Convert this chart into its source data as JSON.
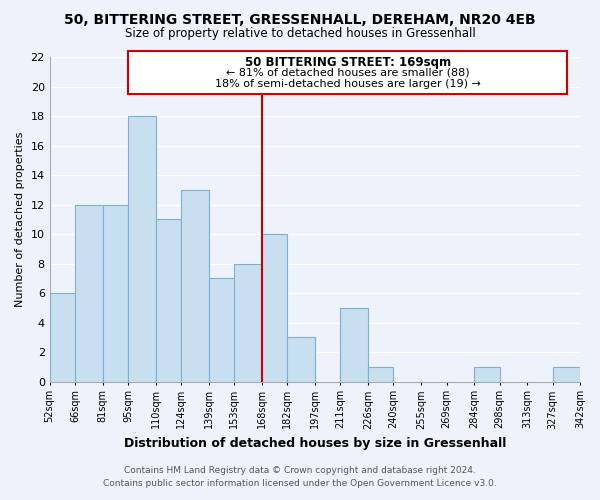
{
  "title": "50, BITTERING STREET, GRESSENHALL, DEREHAM, NR20 4EB",
  "subtitle": "Size of property relative to detached houses in Gressenhall",
  "xlabel": "Distribution of detached houses by size in Gressenhall",
  "ylabel": "Number of detached properties",
  "bin_edges": [
    52,
    66,
    81,
    95,
    110,
    124,
    139,
    153,
    168,
    182,
    197,
    211,
    226,
    240,
    255,
    269,
    284,
    298,
    313,
    327,
    342
  ],
  "bar_heights": [
    6,
    12,
    12,
    18,
    11,
    13,
    7,
    8,
    10,
    3,
    0,
    5,
    1,
    0,
    0,
    0,
    1,
    0,
    0,
    1
  ],
  "bar_color": "#c8dff0",
  "bar_edge_color": "#7ab0d4",
  "reference_line_x": 168,
  "reference_line_color": "#cc0000",
  "ylim": [
    0,
    22
  ],
  "annotation_title": "50 BITTERING STREET: 169sqm",
  "annotation_line1": "← 81% of detached houses are smaller (88)",
  "annotation_line2": "18% of semi-detached houses are larger (19) →",
  "annotation_box_color": "#ffffff",
  "annotation_box_edge": "#cc0000",
  "footer_line1": "Contains HM Land Registry data © Crown copyright and database right 2024.",
  "footer_line2": "Contains public sector information licensed under the Open Government Licence v3.0.",
  "bg_color": "#eef2fa",
  "grid_color": "#ffffff",
  "tick_labels": [
    "52sqm",
    "66sqm",
    "81sqm",
    "95sqm",
    "110sqm",
    "124sqm",
    "139sqm",
    "153sqm",
    "168sqm",
    "182sqm",
    "197sqm",
    "211sqm",
    "226sqm",
    "240sqm",
    "255sqm",
    "269sqm",
    "284sqm",
    "298sqm",
    "313sqm",
    "327sqm",
    "342sqm"
  ],
  "yticks": [
    0,
    2,
    4,
    6,
    8,
    10,
    12,
    14,
    16,
    18,
    20,
    22
  ]
}
